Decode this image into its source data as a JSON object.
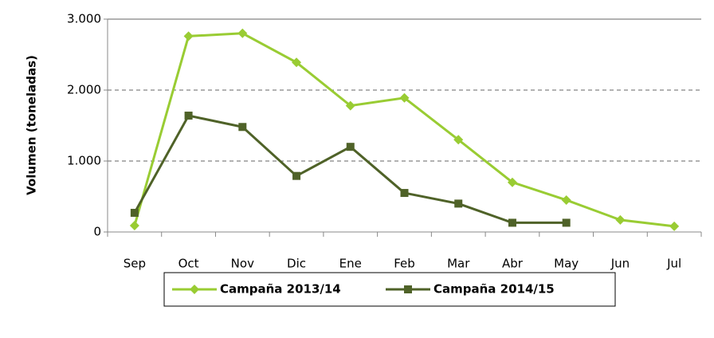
{
  "chart_data": {
    "type": "line",
    "ylabel": "Volumen (toneladas)",
    "categories": [
      "Sep",
      "Oct",
      "Nov",
      "Dic",
      "Ene",
      "Feb",
      "Mar",
      "Abr",
      "May",
      "Jun",
      "Jul"
    ],
    "series": [
      {
        "name": "Campaña 2013/14",
        "color": "#99cc33",
        "marker": "diamond",
        "values": [
          90,
          2760,
          2800,
          2390,
          1780,
          1890,
          1300,
          700,
          450,
          170,
          80
        ]
      },
      {
        "name": "Campaña 2014/15",
        "color": "#4f6228",
        "marker": "square",
        "values": [
          270,
          1640,
          1480,
          790,
          1200,
          550,
          400,
          130,
          130,
          null,
          null
        ]
      }
    ],
    "ylim": [
      0,
      3000
    ],
    "yticks": [
      0,
      {
        "value": 1000,
        "label": "1.000"
      },
      {
        "value": 2000,
        "label": "2.000"
      },
      {
        "value": 3000,
        "label": "3.000"
      }
    ],
    "grid": true,
    "legend": "bottom"
  }
}
